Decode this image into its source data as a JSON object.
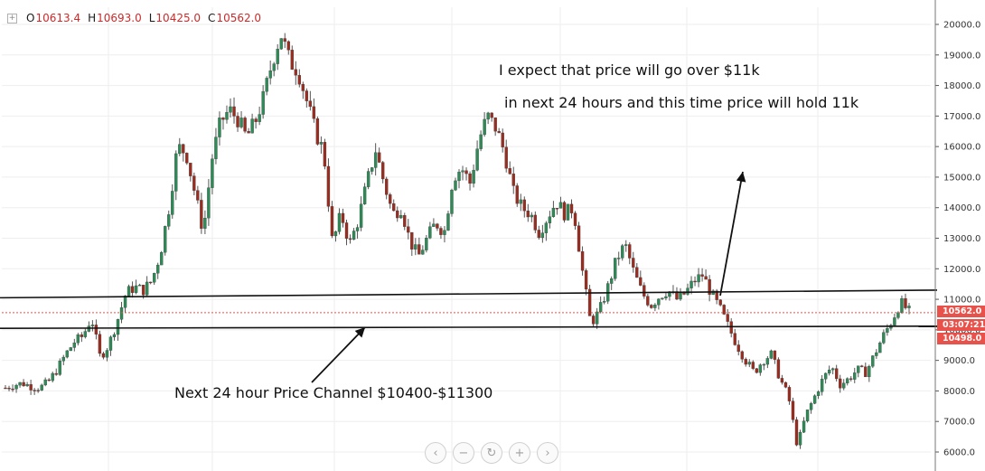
{
  "header": {
    "open_label": "O",
    "open_value": "10613.4",
    "high_label": "H",
    "high_value": "10693.0",
    "low_label": "L",
    "low_value": "10425.0",
    "close_label": "C",
    "close_value": "10562.0"
  },
  "annotations": {
    "line1": "I expect that price will go over $11k",
    "line2": "in next 24 hours and this time price will hold 11k",
    "channel": "Next 24 hour Price Channel $10400-$11300"
  },
  "badges": {
    "last_price": "10562.0",
    "countdown": "03:07:21",
    "low_price": "10498.0"
  },
  "nav": {
    "left": "‹",
    "zoom_out": "−",
    "reset": "↻",
    "zoom_in": "+",
    "right": "›"
  },
  "colors": {
    "up": "#2e8b57",
    "down": "#9b2d20",
    "badge": "#e8524a",
    "grid": "#eeeeee"
  },
  "chart_data": {
    "type": "candlestick",
    "y_axis_ticks": [
      "20000.0",
      "19000.0",
      "18000.0",
      "17000.0",
      "16000.0",
      "15000.0",
      "14000.0",
      "13000.0",
      "12000.0",
      "11000.0",
      "10000.0",
      "9000.0",
      "8000.0",
      "7000.0",
      "6000.0"
    ],
    "ylim": [
      5700,
      20500
    ],
    "channel_upper": [
      11050,
      11300
    ],
    "channel_lower": [
      10050,
      10120
    ],
    "last_price": 10562,
    "price_path": [
      8100,
      8200,
      8250,
      8150,
      8100,
      8300,
      8700,
      9200,
      9600,
      9800,
      10400,
      9100,
      9500,
      10300,
      11200,
      11400,
      11300,
      11600,
      12500,
      14000,
      16000,
      15800,
      14500,
      13200,
      15600,
      16800,
      17200,
      16900,
      16300,
      16800,
      17600,
      18800,
      19700,
      18800,
      18500,
      17500,
      16500,
      15800,
      12800,
      13800,
      12800,
      13600,
      14800,
      15900,
      14800,
      13800,
      14000,
      12900,
      12400,
      13000,
      13500,
      13200,
      15000,
      15300,
      14800,
      16200,
      17000,
      16600,
      15800,
      14500,
      14000,
      13800,
      13200,
      13700,
      14200,
      13800,
      14000,
      12000,
      10200,
      10600,
      11400,
      12300,
      12800,
      11900,
      11200,
      10800,
      11100,
      11300,
      11000,
      11200,
      11600,
      11800,
      11200,
      10700,
      10100,
      9500,
      9000,
      8600,
      9000,
      9200,
      8400,
      7800,
      6200,
      7200,
      7800,
      8400,
      8800,
      8200,
      8400,
      8700,
      8600,
      9200,
      9800,
      10300,
      10900,
      10600
    ]
  }
}
